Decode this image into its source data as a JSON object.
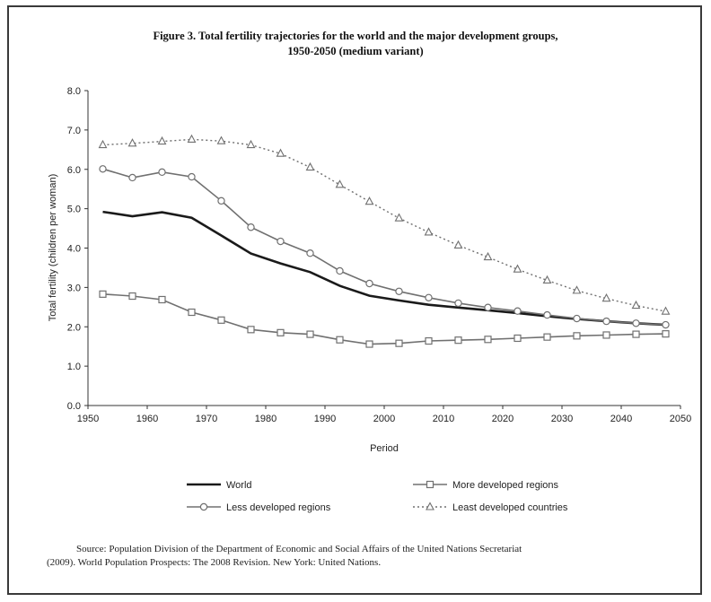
{
  "figure": {
    "title_line1": "Figure 3. Total fertility trajectories for the world and the major development groups,",
    "title_line2": "1950-2050 (medium variant)"
  },
  "source": {
    "line1": "Source: Population Division of the Department of Economic and Social Affairs of the United Nations Secretariat",
    "line2": "(2009). World Population Prospects: The 2008 Revision. New York: United Nations."
  },
  "chart_data": {
    "type": "line",
    "title": "Figure 3. Total fertility trajectories for the world and the major development groups, 1950-2050 (medium variant)",
    "xlabel": "Period",
    "ylabel": "Total fertility (children per woman)",
    "xlim": [
      1950,
      2050
    ],
    "ylim": [
      0,
      8
    ],
    "x_ticks": [
      "1950",
      "1960",
      "1970",
      "1980",
      "1990",
      "2000",
      "2010",
      "2020",
      "2030",
      "2040",
      "2050"
    ],
    "y_ticks": [
      "0.0",
      "1.0",
      "2.0",
      "3.0",
      "4.0",
      "5.0",
      "6.0",
      "7.0",
      "8.0"
    ],
    "grid": false,
    "legend_position": "bottom",
    "x": [
      1952.5,
      1957.5,
      1962.5,
      1967.5,
      1972.5,
      1977.5,
      1982.5,
      1987.5,
      1992.5,
      1997.5,
      2002.5,
      2007.5,
      2012.5,
      2017.5,
      2022.5,
      2027.5,
      2032.5,
      2037.5,
      2042.5,
      2047.5
    ],
    "series": [
      {
        "name": "World",
        "style": "solid-thick",
        "color": "#1a1a1a",
        "values": [
          4.92,
          4.81,
          4.91,
          4.77,
          4.32,
          3.86,
          3.61,
          3.39,
          3.04,
          2.79,
          2.67,
          2.56,
          2.49,
          2.42,
          2.35,
          2.27,
          2.2,
          2.14,
          2.09,
          2.05
        ]
      },
      {
        "name": "More developed regions",
        "style": "solid-square",
        "color": "#707070",
        "values": [
          2.83,
          2.78,
          2.69,
          2.37,
          2.17,
          1.93,
          1.85,
          1.81,
          1.67,
          1.56,
          1.58,
          1.64,
          1.66,
          1.68,
          1.71,
          1.74,
          1.77,
          1.79,
          1.81,
          1.82
        ]
      },
      {
        "name": "Less developed regions",
        "style": "solid-circle",
        "color": "#707070",
        "values": [
          6.01,
          5.79,
          5.93,
          5.81,
          5.2,
          4.53,
          4.17,
          3.87,
          3.42,
          3.1,
          2.9,
          2.74,
          2.6,
          2.49,
          2.4,
          2.3,
          2.21,
          2.14,
          2.09,
          2.05
        ]
      },
      {
        "name": "Least developed countries",
        "style": "dotted-triangle",
        "color": "#707070",
        "values": [
          6.62,
          6.66,
          6.71,
          6.76,
          6.72,
          6.62,
          6.4,
          6.05,
          5.61,
          5.18,
          4.76,
          4.4,
          4.07,
          3.77,
          3.46,
          3.18,
          2.92,
          2.72,
          2.54,
          2.39
        ]
      }
    ]
  }
}
